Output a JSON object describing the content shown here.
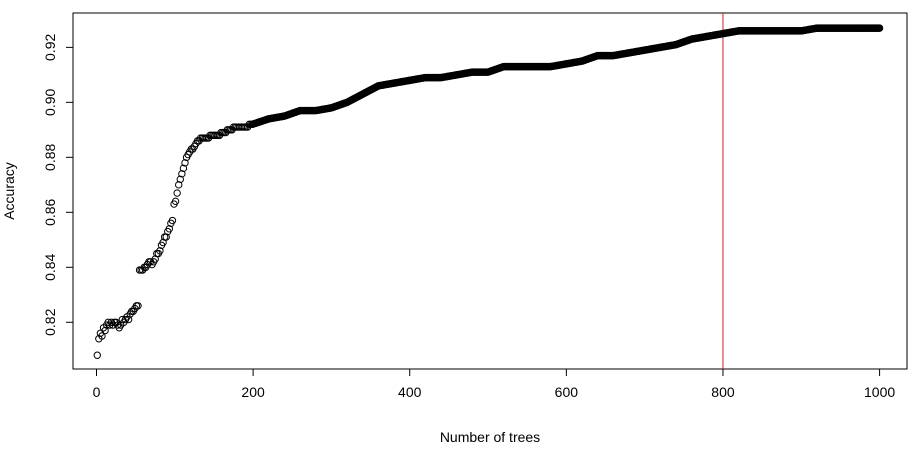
{
  "chart_data": {
    "type": "scatter",
    "title": "",
    "xlabel": "Number of trees",
    "ylabel": "Accuracy",
    "xlim": [
      -30,
      1035
    ],
    "ylim": [
      0.803,
      0.9325
    ],
    "xticks": [
      0,
      200,
      400,
      600,
      800,
      1000
    ],
    "xtick_labels": [
      "0",
      "200",
      "400",
      "600",
      "800",
      "1000"
    ],
    "yticks": [
      0.82,
      0.84,
      0.86,
      0.88,
      0.9,
      0.92
    ],
    "ytick_labels": [
      "0.82",
      "0.84",
      "0.86",
      "0.88",
      "0.90",
      "0.92"
    ],
    "grid": false,
    "legend": "none",
    "marker": "open-circle",
    "point_color": "#000000",
    "reference_line": {
      "orientation": "vertical",
      "x": 800,
      "color": "#cc2222"
    },
    "series": [
      {
        "x": [
          1,
          3,
          5,
          7,
          9,
          11,
          13,
          15,
          17,
          19,
          21,
          23,
          25,
          27,
          29,
          31,
          33,
          35,
          37,
          39,
          41,
          43,
          45,
          47,
          49,
          51,
          53,
          55,
          57,
          59,
          61,
          63,
          65,
          67,
          69,
          71,
          73,
          75,
          77,
          79,
          81,
          83,
          85,
          87,
          89,
          91,
          93,
          95,
          97,
          99,
          101,
          103,
          105,
          107,
          109,
          111,
          113,
          115,
          117,
          119,
          121,
          123,
          125,
          127,
          129,
          131,
          133,
          135,
          137,
          139,
          141,
          143,
          145,
          147,
          149,
          151,
          153,
          155,
          157,
          159,
          161,
          163,
          165,
          167,
          169,
          171,
          173,
          175,
          177,
          179,
          181,
          183,
          185,
          187,
          189,
          191,
          193,
          195,
          197,
          199,
          220,
          240,
          260,
          280,
          300,
          320,
          340,
          360,
          380,
          400,
          420,
          440,
          460,
          480,
          500,
          520,
          540,
          560,
          580,
          600,
          620,
          640,
          660,
          680,
          700,
          720,
          740,
          760,
          780,
          800,
          820,
          840,
          860,
          880,
          900,
          920,
          940,
          960,
          980,
          1000
        ],
        "y": [
          0.808,
          0.814,
          0.816,
          0.815,
          0.818,
          0.817,
          0.819,
          0.82,
          0.819,
          0.82,
          0.819,
          0.82,
          0.82,
          0.819,
          0.818,
          0.819,
          0.821,
          0.82,
          0.821,
          0.822,
          0.821,
          0.823,
          0.824,
          0.824,
          0.825,
          0.826,
          0.826,
          0.839,
          0.839,
          0.839,
          0.84,
          0.84,
          0.841,
          0.842,
          0.842,
          0.841,
          0.842,
          0.843,
          0.845,
          0.845,
          0.846,
          0.848,
          0.849,
          0.851,
          0.851,
          0.853,
          0.854,
          0.856,
          0.857,
          0.863,
          0.864,
          0.867,
          0.87,
          0.872,
          0.874,
          0.876,
          0.878,
          0.88,
          0.881,
          0.882,
          0.883,
          0.883,
          0.884,
          0.885,
          0.886,
          0.886,
          0.887,
          0.887,
          0.887,
          0.887,
          0.887,
          0.887,
          0.888,
          0.888,
          0.888,
          0.888,
          0.888,
          0.888,
          0.888,
          0.889,
          0.889,
          0.889,
          0.889,
          0.89,
          0.89,
          0.89,
          0.89,
          0.891,
          0.891,
          0.891,
          0.891,
          0.891,
          0.891,
          0.891,
          0.891,
          0.891,
          0.891,
          0.892,
          0.892,
          0.892,
          0.894,
          0.895,
          0.897,
          0.897,
          0.898,
          0.9,
          0.903,
          0.906,
          0.907,
          0.908,
          0.909,
          0.909,
          0.91,
          0.911,
          0.911,
          0.913,
          0.913,
          0.913,
          0.913,
          0.914,
          0.915,
          0.917,
          0.917,
          0.918,
          0.919,
          0.92,
          0.921,
          0.923,
          0.924,
          0.925,
          0.926,
          0.926,
          0.926,
          0.926,
          0.926,
          0.927,
          0.927,
          0.927,
          0.927,
          0.927
        ]
      }
    ]
  }
}
